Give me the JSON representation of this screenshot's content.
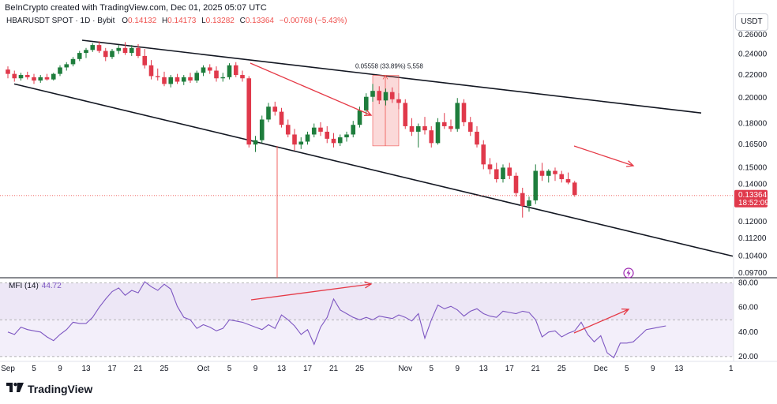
{
  "header": {
    "created_by": "BeInCrypto created with TradingView.com, Dec 01, 2025 05:07 UTC"
  },
  "legend": {
    "symbol": "HBARUSDT SPOT · 1D · Bybit",
    "open_label": "O",
    "open": "0.14132",
    "high_label": "H",
    "high": "0.14173",
    "low_label": "L",
    "low": "0.13282",
    "close_label": "C",
    "close": "0.13364",
    "change": "−0.00768 (−5.43%)"
  },
  "currency_button": "USDT",
  "price_tag": {
    "price": "0.13364",
    "countdown": "18:52:09"
  },
  "measure_label": "0.05558 (33.89%) 5,558",
  "mfi_indicator": {
    "name": "MFI (14)",
    "value": "44.72"
  },
  "brand": {
    "name": "TradingView"
  },
  "colors": {
    "up": "#1e7d3c",
    "down": "#e0394b",
    "accent_red": "#e53946",
    "mfi_line": "#7e57c2",
    "mfi_band": "#ede7f6"
  },
  "chart_data": [
    {
      "type": "candlestick",
      "scale": "log",
      "y_ticks": [
        "0.26000",
        "0.24000",
        "0.22000",
        "0.20000",
        "0.18000",
        "0.16500",
        "0.15000",
        "0.14000",
        "0.13000",
        "0.12000",
        "0.11200",
        "0.10400",
        "0.09700"
      ],
      "x_ticks": [
        "Sep",
        "5",
        "9",
        "13",
        "17",
        "21",
        "25",
        "Oct",
        "5",
        "9",
        "13",
        "17",
        "21",
        "25",
        "Nov",
        "5",
        "9",
        "13",
        "17",
        "21",
        "25",
        "Dec",
        "5",
        "9",
        "13",
        "1"
      ],
      "ylim": [
        0.097,
        0.265
      ],
      "candles": [
        [
          0.225,
          0.228,
          0.217,
          0.221
        ],
        [
          0.221,
          0.224,
          0.214,
          0.217
        ],
        [
          0.217,
          0.222,
          0.215,
          0.22
        ],
        [
          0.22,
          0.223,
          0.216,
          0.218
        ],
        [
          0.218,
          0.221,
          0.212,
          0.215
        ],
        [
          0.215,
          0.22,
          0.213,
          0.218
        ],
        [
          0.218,
          0.221,
          0.215,
          0.216
        ],
        [
          0.216,
          0.222,
          0.215,
          0.221
        ],
        [
          0.221,
          0.229,
          0.219,
          0.227
        ],
        [
          0.227,
          0.232,
          0.224,
          0.23
        ],
        [
          0.23,
          0.237,
          0.228,
          0.235
        ],
        [
          0.235,
          0.243,
          0.233,
          0.241
        ],
        [
          0.241,
          0.246,
          0.236,
          0.244
        ],
        [
          0.244,
          0.251,
          0.242,
          0.249
        ],
        [
          0.249,
          0.253,
          0.241,
          0.243
        ],
        [
          0.243,
          0.246,
          0.233,
          0.237
        ],
        [
          0.237,
          0.245,
          0.235,
          0.243
        ],
        [
          0.243,
          0.249,
          0.24,
          0.246
        ],
        [
          0.246,
          0.252,
          0.239,
          0.241
        ],
        [
          0.241,
          0.249,
          0.238,
          0.246
        ],
        [
          0.246,
          0.25,
          0.236,
          0.238
        ],
        [
          0.238,
          0.245,
          0.226,
          0.229
        ],
        [
          0.229,
          0.234,
          0.216,
          0.219
        ],
        [
          0.219,
          0.226,
          0.215,
          0.218
        ],
        [
          0.218,
          0.223,
          0.21,
          0.212
        ],
        [
          0.212,
          0.22,
          0.209,
          0.218
        ],
        [
          0.218,
          0.221,
          0.212,
          0.214
        ],
        [
          0.214,
          0.22,
          0.211,
          0.218
        ],
        [
          0.218,
          0.222,
          0.213,
          0.215
        ],
        [
          0.215,
          0.224,
          0.213,
          0.222
        ],
        [
          0.222,
          0.229,
          0.219,
          0.227
        ],
        [
          0.227,
          0.23,
          0.221,
          0.224
        ],
        [
          0.224,
          0.228,
          0.214,
          0.217
        ],
        [
          0.217,
          0.222,
          0.214,
          0.218
        ],
        [
          0.218,
          0.231,
          0.216,
          0.229
        ],
        [
          0.229,
          0.232,
          0.218,
          0.22
        ],
        [
          0.22,
          0.224,
          0.214,
          0.217
        ],
        [
          0.217,
          0.219,
          0.163,
          0.165
        ],
        [
          0.165,
          0.171,
          0.16,
          0.168
        ],
        [
          0.168,
          0.186,
          0.166,
          0.183
        ],
        [
          0.183,
          0.196,
          0.181,
          0.193
        ],
        [
          0.193,
          0.197,
          0.186,
          0.189
        ],
        [
          0.189,
          0.192,
          0.177,
          0.179
        ],
        [
          0.179,
          0.183,
          0.17,
          0.172
        ],
        [
          0.172,
          0.176,
          0.161,
          0.165
        ],
        [
          0.165,
          0.17,
          0.162,
          0.167
        ],
        [
          0.167,
          0.174,
          0.165,
          0.172
        ],
        [
          0.172,
          0.18,
          0.17,
          0.177
        ],
        [
          0.177,
          0.181,
          0.171,
          0.174
        ],
        [
          0.174,
          0.178,
          0.166,
          0.169
        ],
        [
          0.169,
          0.173,
          0.163,
          0.166
        ],
        [
          0.166,
          0.172,
          0.164,
          0.17
        ],
        [
          0.17,
          0.174,
          0.167,
          0.172
        ],
        [
          0.172,
          0.182,
          0.17,
          0.179
        ],
        [
          0.179,
          0.193,
          0.177,
          0.19
        ],
        [
          0.19,
          0.204,
          0.186,
          0.201
        ],
        [
          0.201,
          0.212,
          0.197,
          0.206
        ],
        [
          0.206,
          0.21,
          0.195,
          0.198
        ],
        [
          0.198,
          0.208,
          0.194,
          0.205
        ],
        [
          0.205,
          0.209,
          0.196,
          0.199
        ],
        [
          0.199,
          0.204,
          0.191,
          0.196
        ],
        [
          0.196,
          0.199,
          0.176,
          0.178
        ],
        [
          0.178,
          0.184,
          0.171,
          0.174
        ],
        [
          0.174,
          0.18,
          0.163,
          0.178
        ],
        [
          0.178,
          0.185,
          0.172,
          0.175
        ],
        [
          0.175,
          0.178,
          0.163,
          0.166
        ],
        [
          0.166,
          0.184,
          0.165,
          0.181
        ],
        [
          0.181,
          0.188,
          0.176,
          0.178
        ],
        [
          0.178,
          0.183,
          0.174,
          0.176
        ],
        [
          0.176,
          0.2,
          0.174,
          0.196
        ],
        [
          0.196,
          0.199,
          0.178,
          0.181
        ],
        [
          0.181,
          0.185,
          0.171,
          0.174
        ],
        [
          0.174,
          0.178,
          0.163,
          0.165
        ],
        [
          0.165,
          0.168,
          0.149,
          0.152
        ],
        [
          0.152,
          0.156,
          0.146,
          0.149
        ],
        [
          0.149,
          0.153,
          0.141,
          0.143
        ],
        [
          0.143,
          0.152,
          0.141,
          0.15
        ],
        [
          0.15,
          0.153,
          0.143,
          0.145
        ],
        [
          0.145,
          0.147,
          0.133,
          0.135
        ],
        [
          0.135,
          0.138,
          0.122,
          0.128
        ],
        [
          0.128,
          0.133,
          0.125,
          0.131
        ],
        [
          0.131,
          0.152,
          0.129,
          0.148
        ],
        [
          0.148,
          0.153,
          0.142,
          0.145
        ],
        [
          0.145,
          0.149,
          0.141,
          0.148
        ],
        [
          0.148,
          0.15,
          0.142,
          0.146
        ],
        [
          0.146,
          0.148,
          0.141,
          0.143
        ],
        [
          0.143,
          0.147,
          0.14,
          0.141
        ],
        [
          0.141,
          0.142,
          0.133,
          0.134
        ]
      ],
      "annotations": {
        "upper_trendline": [
          [
            0.254,
            0.188
          ]
        ],
        "lower_trendline": [
          [
            0.212,
            0.104
          ]
        ],
        "measure_box": {
          "low": 0.1641,
          "high": 0.2197,
          "label": "0.05558 (33.89%) 5,558"
        },
        "current_price": 0.13364
      }
    },
    {
      "type": "line",
      "name": "MFI (14)",
      "y_ticks": [
        "80.00",
        "60.00",
        "40.00",
        "20.00"
      ],
      "ylim": [
        18,
        83
      ],
      "band": [
        50,
        80
      ],
      "values": [
        40,
        38,
        44,
        42,
        41,
        40,
        36,
        33,
        38,
        42,
        48,
        47,
        47,
        52,
        60,
        67,
        73,
        76,
        70,
        74,
        72,
        81,
        77,
        74,
        79,
        75,
        61,
        52,
        50,
        43,
        46,
        44,
        41,
        43,
        50,
        49,
        48,
        46,
        44,
        42,
        46,
        43,
        54,
        50,
        45,
        38,
        42,
        30,
        44,
        52,
        67,
        58,
        55,
        52,
        50,
        52,
        50,
        53,
        52,
        51,
        54,
        52,
        49,
        55,
        35,
        50,
        62,
        59,
        61,
        58,
        53,
        57,
        59,
        55,
        53,
        52,
        57,
        56,
        55,
        57,
        56,
        50,
        36,
        40,
        41,
        36,
        39,
        41,
        48,
        38,
        32,
        37,
        23,
        19,
        31,
        31,
        32,
        37,
        42,
        43,
        44,
        45
      ]
    }
  ]
}
